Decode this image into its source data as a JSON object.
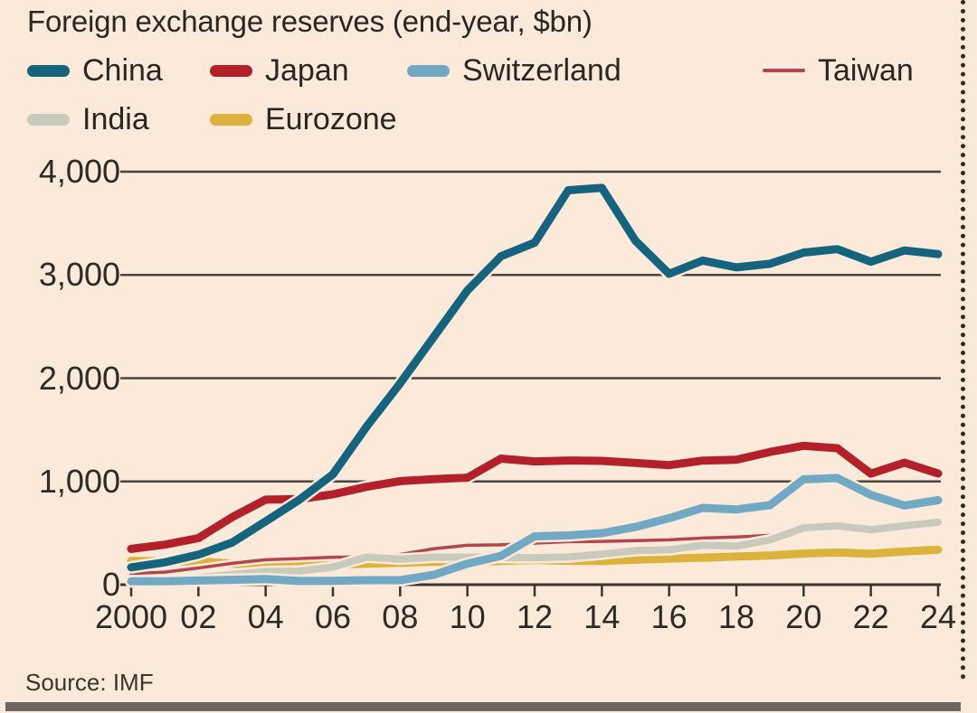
{
  "title": "Foreign exchange reserves (end-year, $bn)",
  "source": "Source: IMF",
  "colors": {
    "background": "#fbe9da",
    "text": "#2a2723",
    "gridline": "#4b443c",
    "axis": "#3c362f",
    "bottom_rule": "#6c6660",
    "dotted_divider": "#33291f"
  },
  "chart_data": {
    "type": "line",
    "title": "Foreign exchange reserves (end-year, $bn)",
    "xlabel": "",
    "ylabel": "",
    "x": [
      2000,
      2001,
      2002,
      2003,
      2004,
      2005,
      2006,
      2007,
      2008,
      2009,
      2010,
      2011,
      2012,
      2013,
      2014,
      2015,
      2016,
      2017,
      2018,
      2019,
      2020,
      2021,
      2022,
      2023,
      2024
    ],
    "series": [
      {
        "name": "China",
        "color": "#16637e",
        "width": 9,
        "values": [
          168,
          216,
          291,
          408,
          614,
          822,
          1069,
          1531,
          1950,
          2400,
          2850,
          3181,
          3312,
          3821,
          3843,
          3330,
          3011,
          3140,
          3073,
          3108,
          3217,
          3250,
          3128,
          3238,
          3202
        ]
      },
      {
        "name": "Japan",
        "color": "#b3202a",
        "width": 9,
        "values": [
          347,
          388,
          451,
          653,
          824,
          829,
          875,
          948,
          1003,
          1022,
          1036,
          1221,
          1194,
          1203,
          1199,
          1179,
          1158,
          1202,
          1210,
          1286,
          1345,
          1322,
          1076,
          1182,
          1077
        ]
      },
      {
        "name": "Switzerland",
        "color": "#71a8c3",
        "width": 9,
        "values": [
          32,
          32,
          40,
          47,
          55,
          36,
          38,
          44,
          44,
          95,
          204,
          279,
          468,
          477,
          499,
          559,
          644,
          744,
          729,
          770,
          1021,
          1033,
          869,
          767,
          818
        ]
      },
      {
        "name": "Taiwan",
        "color": "#b4454d",
        "width": 3.5,
        "values": [
          107,
          122,
          162,
          207,
          242,
          253,
          266,
          270,
          292,
          348,
          382,
          386,
          403,
          417,
          419,
          426,
          434,
          452,
          462,
          478,
          530,
          548,
          555,
          571,
          578
        ]
      },
      {
        "name": "India",
        "color": "#c8cabc",
        "width": 8,
        "values": [
          38,
          46,
          68,
          99,
          127,
          132,
          171,
          267,
          248,
          266,
          267,
          263,
          262,
          268,
          296,
          330,
          338,
          382,
          374,
          433,
          550,
          570,
          533,
          570,
          605
        ]
      },
      {
        "name": "Eurozone",
        "color": "#dcb23a",
        "width": 9,
        "values": [
          231,
          225,
          227,
          203,
          189,
          180,
          190,
          203,
          212,
          222,
          221,
          229,
          240,
          231,
          230,
          242,
          252,
          262,
          272,
          283,
          302,
          312,
          300,
          322,
          338
        ]
      }
    ],
    "ylim": [
      0,
      4000
    ],
    "yticks": [
      0,
      1000,
      2000,
      3000,
      4000
    ],
    "ytick_labels": [
      "0",
      "1,000",
      "2,000",
      "3,000",
      "4,000"
    ],
    "xticks": [
      2000,
      2002,
      2004,
      2006,
      2008,
      2010,
      2012,
      2014,
      2016,
      2018,
      2020,
      2022,
      2024
    ],
    "xtick_labels": [
      "2000",
      "02",
      "04",
      "06",
      "08",
      "10",
      "12",
      "14",
      "16",
      "18",
      "20",
      "22",
      "24"
    ],
    "grid": true,
    "legend_position": "top",
    "draw_order": [
      5,
      3,
      4,
      2,
      1,
      0
    ]
  }
}
